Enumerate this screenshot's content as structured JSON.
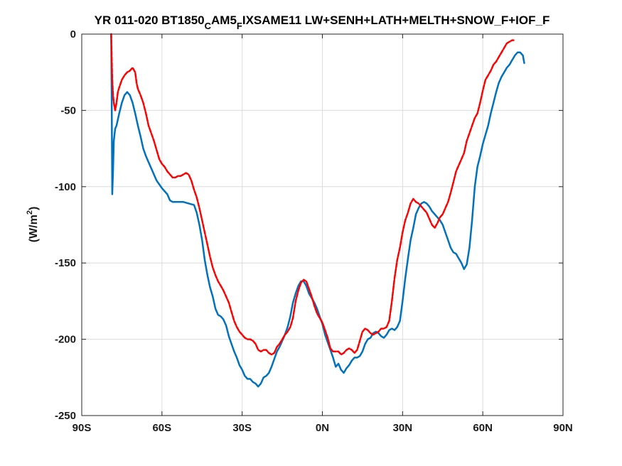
{
  "chart_data": {
    "type": "line",
    "title": "YR 011-020 BT1850",
    "title_parts": {
      "prefix": "YR 011-020 BT1850",
      "sub1": "C",
      "mid": "AM5",
      "sub2": "F",
      "suffix": "IXSAME11 LW+SENH+LATH+MELTH+SNOW_F+IOF_F"
    },
    "xlabel": "",
    "ylabel_parts": {
      "main": "(W/m",
      "sup": "2",
      "close": ")"
    },
    "xlim": [
      -90,
      90
    ],
    "ylim": [
      -250,
      0
    ],
    "x_ticks": [
      -90,
      -60,
      -30,
      0,
      30,
      60,
      90
    ],
    "x_tick_labels": [
      "90S",
      "60S",
      "30S",
      "0N",
      "30N",
      "60N",
      "90N"
    ],
    "y_ticks": [
      0,
      -50,
      -100,
      -150,
      -200,
      -250
    ],
    "y_tick_labels": [
      "0",
      "-50",
      "-100",
      "-150",
      "-200",
      "-250"
    ],
    "grid": true,
    "series": [
      {
        "color": "#0072bd",
        "style": "solid",
        "points": [
          [
            -79,
            0
          ],
          [
            -78.8,
            -40
          ],
          [
            -78.6,
            -105
          ],
          [
            -78.3,
            -90
          ],
          [
            -78,
            -70
          ],
          [
            -77.5,
            -62
          ],
          [
            -77,
            -60
          ],
          [
            -76.5,
            -56
          ],
          [
            -76,
            -52
          ],
          [
            -75,
            -45
          ],
          [
            -74,
            -40
          ],
          [
            -73,
            -38
          ],
          [
            -72,
            -40
          ],
          [
            -71,
            -45
          ],
          [
            -70,
            -52
          ],
          [
            -69,
            -60
          ],
          [
            -68,
            -67
          ],
          [
            -67,
            -75
          ],
          [
            -66,
            -80
          ],
          [
            -65,
            -84
          ],
          [
            -64,
            -88
          ],
          [
            -62,
            -96
          ],
          [
            -60,
            -101
          ],
          [
            -58,
            -105
          ],
          [
            -57,
            -109
          ],
          [
            -56,
            -110
          ],
          [
            -54,
            -110
          ],
          [
            -52,
            -110
          ],
          [
            -50,
            -111
          ],
          [
            -48,
            -112
          ],
          [
            -47,
            -117
          ],
          [
            -46,
            -125
          ],
          [
            -45,
            -135
          ],
          [
            -44,
            -148
          ],
          [
            -43,
            -158
          ],
          [
            -42,
            -166
          ],
          [
            -41,
            -172
          ],
          [
            -40,
            -180
          ],
          [
            -39,
            -184
          ],
          [
            -38,
            -185
          ],
          [
            -37,
            -187
          ],
          [
            -36,
            -191
          ],
          [
            -35,
            -198
          ],
          [
            -34,
            -203
          ],
          [
            -33,
            -208
          ],
          [
            -32,
            -212
          ],
          [
            -31,
            -217
          ],
          [
            -30,
            -220
          ],
          [
            -29,
            -224
          ],
          [
            -28,
            -226
          ],
          [
            -27,
            -226
          ],
          [
            -26,
            -228
          ],
          [
            -25,
            -229
          ],
          [
            -24,
            -231
          ],
          [
            -23,
            -229
          ],
          [
            -22,
            -225
          ],
          [
            -21,
            -224
          ],
          [
            -20,
            -222
          ],
          [
            -19,
            -218
          ],
          [
            -18,
            -213
          ],
          [
            -17,
            -208
          ],
          [
            -16,
            -205
          ],
          [
            -15,
            -201
          ],
          [
            -14,
            -197
          ],
          [
            -13,
            -192
          ],
          [
            -12,
            -185
          ],
          [
            -11,
            -176
          ],
          [
            -10,
            -170
          ],
          [
            -9,
            -165
          ],
          [
            -8,
            -162
          ],
          [
            -7,
            -162
          ],
          [
            -6,
            -165
          ],
          [
            -5,
            -170
          ],
          [
            -4,
            -173
          ],
          [
            -3,
            -176
          ],
          [
            -2,
            -180
          ],
          [
            -1,
            -185
          ],
          [
            0,
            -190
          ],
          [
            1,
            -197
          ],
          [
            2,
            -202
          ],
          [
            3,
            -207
          ],
          [
            4,
            -212
          ],
          [
            5,
            -218
          ],
          [
            6,
            -216
          ],
          [
            7,
            -220
          ],
          [
            8,
            -222
          ],
          [
            9,
            -219
          ],
          [
            10,
            -217
          ],
          [
            11,
            -214
          ],
          [
            12,
            -212
          ],
          [
            13,
            -212
          ],
          [
            14,
            -211
          ],
          [
            15,
            -208
          ],
          [
            16,
            -203
          ],
          [
            17,
            -200
          ],
          [
            18,
            -199
          ],
          [
            19,
            -196
          ],
          [
            20,
            -195
          ],
          [
            21,
            -196
          ],
          [
            22,
            -198
          ],
          [
            23,
            -199
          ],
          [
            24,
            -197
          ],
          [
            25,
            -194
          ],
          [
            26,
            -193
          ],
          [
            27,
            -194
          ],
          [
            28,
            -192
          ],
          [
            29,
            -188
          ],
          [
            30,
            -175
          ],
          [
            31,
            -160
          ],
          [
            32,
            -147
          ],
          [
            33,
            -135
          ],
          [
            34,
            -127
          ],
          [
            35,
            -118
          ],
          [
            36,
            -114
          ],
          [
            37,
            -111
          ],
          [
            38,
            -110
          ],
          [
            39,
            -111
          ],
          [
            40,
            -113
          ],
          [
            41,
            -116
          ],
          [
            42,
            -118
          ],
          [
            43,
            -120
          ],
          [
            44,
            -122
          ],
          [
            45,
            -125
          ],
          [
            46,
            -130
          ],
          [
            47,
            -135
          ],
          [
            48,
            -140
          ],
          [
            49,
            -143
          ],
          [
            50,
            -144
          ],
          [
            51,
            -147
          ],
          [
            52,
            -150
          ],
          [
            53,
            -154
          ],
          [
            54,
            -151
          ],
          [
            55,
            -140
          ],
          [
            56,
            -122
          ],
          [
            57,
            -100
          ],
          [
            58,
            -87
          ],
          [
            59,
            -80
          ],
          [
            60,
            -72
          ],
          [
            61,
            -66
          ],
          [
            62,
            -60
          ],
          [
            63,
            -52
          ],
          [
            64,
            -45
          ],
          [
            65,
            -38
          ],
          [
            66,
            -32
          ],
          [
            67,
            -28
          ],
          [
            68,
            -25
          ],
          [
            69,
            -22
          ],
          [
            70,
            -20
          ],
          [
            71,
            -17
          ],
          [
            72,
            -14
          ],
          [
            73,
            -12
          ],
          [
            74,
            -12
          ],
          [
            75,
            -14
          ],
          [
            75.5,
            -19
          ]
        ]
      },
      {
        "color": "#ff0000",
        "style": "dashed",
        "points": [
          [
            -79,
            0
          ],
          [
            -78.8,
            -15
          ],
          [
            -78.6,
            -30
          ],
          [
            -78.3,
            -40
          ],
          [
            -78,
            -45
          ],
          [
            -77.5,
            -50
          ],
          [
            -77,
            -45
          ],
          [
            -76.5,
            -38
          ],
          [
            -76,
            -35
          ],
          [
            -75,
            -30
          ],
          [
            -74,
            -27
          ],
          [
            -73,
            -25
          ],
          [
            -72,
            -24
          ],
          [
            -71,
            -22
          ],
          [
            -70,
            -25
          ],
          [
            -69.5,
            -32
          ],
          [
            -69,
            -36
          ],
          [
            -68,
            -40
          ],
          [
            -67,
            -45
          ],
          [
            -66,
            -52
          ],
          [
            -65,
            -60
          ],
          [
            -64,
            -65
          ],
          [
            -63,
            -70
          ],
          [
            -62,
            -76
          ],
          [
            -61,
            -82
          ],
          [
            -60,
            -85
          ],
          [
            -59,
            -87
          ],
          [
            -58,
            -90
          ],
          [
            -57,
            -92
          ],
          [
            -56,
            -94
          ],
          [
            -55,
            -94
          ],
          [
            -54,
            -93
          ],
          [
            -53,
            -93
          ],
          [
            -52,
            -92
          ],
          [
            -51,
            -91
          ],
          [
            -50,
            -92
          ],
          [
            -49,
            -96
          ],
          [
            -48,
            -102
          ],
          [
            -47,
            -107
          ],
          [
            -46,
            -114
          ],
          [
            -45,
            -122
          ],
          [
            -44,
            -130
          ],
          [
            -43,
            -138
          ],
          [
            -42,
            -146
          ],
          [
            -41,
            -153
          ],
          [
            -40,
            -158
          ],
          [
            -39,
            -162
          ],
          [
            -38,
            -165
          ],
          [
            -37,
            -168
          ],
          [
            -36,
            -172
          ],
          [
            -35,
            -176
          ],
          [
            -34,
            -182
          ],
          [
            -33,
            -188
          ],
          [
            -32,
            -192
          ],
          [
            -31,
            -195
          ],
          [
            -30,
            -197
          ],
          [
            -29,
            -199
          ],
          [
            -28,
            -200
          ],
          [
            -27,
            -200
          ],
          [
            -26,
            -201
          ],
          [
            -25,
            -203
          ],
          [
            -24,
            -207
          ],
          [
            -23,
            -208
          ],
          [
            -22,
            -207
          ],
          [
            -21,
            -207
          ],
          [
            -20,
            -209
          ],
          [
            -19,
            -210
          ],
          [
            -18,
            -209
          ],
          [
            -17,
            -205
          ],
          [
            -16,
            -203
          ],
          [
            -15,
            -200
          ],
          [
            -14,
            -197
          ],
          [
            -13,
            -195
          ],
          [
            -12,
            -192
          ],
          [
            -11,
            -186
          ],
          [
            -10,
            -175
          ],
          [
            -9,
            -168
          ],
          [
            -8,
            -163
          ],
          [
            -7,
            -161
          ],
          [
            -6,
            -162
          ],
          [
            -5,
            -167
          ],
          [
            -4,
            -172
          ],
          [
            -3,
            -178
          ],
          [
            -2,
            -183
          ],
          [
            -1,
            -186
          ],
          [
            0,
            -189
          ],
          [
            1,
            -194
          ],
          [
            2,
            -199
          ],
          [
            3,
            -206
          ],
          [
            4,
            -208
          ],
          [
            5,
            -208
          ],
          [
            6,
            -208
          ],
          [
            7,
            -210
          ],
          [
            8,
            -209
          ],
          [
            9,
            -207
          ],
          [
            10,
            -206
          ],
          [
            11,
            -207
          ],
          [
            12,
            -209
          ],
          [
            13,
            -207
          ],
          [
            14,
            -201
          ],
          [
            15,
            -195
          ],
          [
            16,
            -193
          ],
          [
            17,
            -194
          ],
          [
            18,
            -196
          ],
          [
            19,
            -197
          ],
          [
            20,
            -196
          ],
          [
            21,
            -195
          ],
          [
            22,
            -193
          ],
          [
            23,
            -193
          ],
          [
            24,
            -192
          ],
          [
            25,
            -188
          ],
          [
            26,
            -175
          ],
          [
            27,
            -160
          ],
          [
            28,
            -148
          ],
          [
            29,
            -140
          ],
          [
            30,
            -130
          ],
          [
            31,
            -122
          ],
          [
            32,
            -117
          ],
          [
            33,
            -111
          ],
          [
            34,
            -108
          ],
          [
            35,
            -110
          ],
          [
            36,
            -111
          ],
          [
            37,
            -113
          ],
          [
            38,
            -115
          ],
          [
            39,
            -117
          ],
          [
            40,
            -121
          ],
          [
            41,
            -125
          ],
          [
            42,
            -127
          ],
          [
            43,
            -124
          ],
          [
            44,
            -120
          ],
          [
            45,
            -118
          ],
          [
            46,
            -114
          ],
          [
            47,
            -110
          ],
          [
            48,
            -104
          ],
          [
            49,
            -97
          ],
          [
            50,
            -90
          ],
          [
            51,
            -86
          ],
          [
            52,
            -82
          ],
          [
            53,
            -78
          ],
          [
            54,
            -70
          ],
          [
            55,
            -65
          ],
          [
            56,
            -60
          ],
          [
            57,
            -55
          ],
          [
            58,
            -52
          ],
          [
            59,
            -45
          ],
          [
            60,
            -37
          ],
          [
            61,
            -30
          ],
          [
            62,
            -27
          ],
          [
            63,
            -24
          ],
          [
            64,
            -20
          ],
          [
            65,
            -18
          ],
          [
            66,
            -15
          ],
          [
            67,
            -12
          ],
          [
            68,
            -9
          ],
          [
            69,
            -6
          ],
          [
            70,
            -5
          ],
          [
            71,
            -4
          ],
          [
            71.5,
            -4
          ]
        ]
      }
    ]
  }
}
